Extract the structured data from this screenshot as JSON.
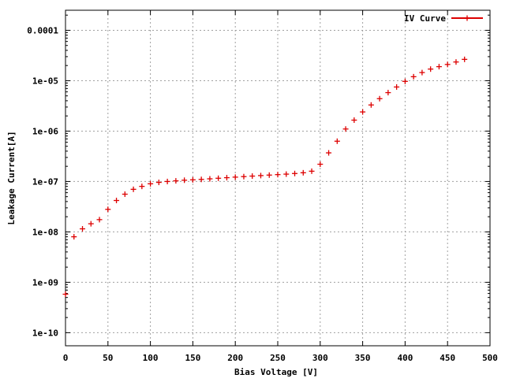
{
  "chart_data": {
    "type": "scatter",
    "title": "",
    "xlabel": "Bias Voltage [V]",
    "ylabel": "Leakage Current[A]",
    "xlim": [
      0,
      500
    ],
    "ylim": [
      5.5e-11,
      0.00025
    ],
    "yscale": "log",
    "grid": true,
    "legend_position": "top-right",
    "x_ticks": [
      {
        "v": 0,
        "label": "0"
      },
      {
        "v": 50,
        "label": "50"
      },
      {
        "v": 100,
        "label": "100"
      },
      {
        "v": 150,
        "label": "150"
      },
      {
        "v": 200,
        "label": "200"
      },
      {
        "v": 250,
        "label": "250"
      },
      {
        "v": 300,
        "label": "300"
      },
      {
        "v": 350,
        "label": "350"
      },
      {
        "v": 400,
        "label": "400"
      },
      {
        "v": 450,
        "label": "450"
      },
      {
        "v": 500,
        "label": "500"
      }
    ],
    "y_ticks": [
      {
        "v": 1e-10,
        "label": "1e-10"
      },
      {
        "v": 1e-09,
        "label": "1e-09"
      },
      {
        "v": 1e-08,
        "label": "1e-08"
      },
      {
        "v": 1e-07,
        "label": "1e-07"
      },
      {
        "v": 1e-06,
        "label": "1e-06"
      },
      {
        "v": 1e-05,
        "label": "1e-05"
      },
      {
        "v": 0.0001,
        "label": "0.0001"
      }
    ],
    "series": [
      {
        "name": "IV Curve",
        "color": "#dd0000",
        "marker": "plus",
        "x": [
          0,
          10,
          20,
          30,
          40,
          50,
          60,
          70,
          80,
          90,
          100,
          110,
          120,
          130,
          140,
          150,
          160,
          170,
          180,
          190,
          200,
          210,
          220,
          230,
          240,
          250,
          260,
          270,
          280,
          290,
          300,
          310,
          320,
          330,
          340,
          350,
          360,
          370,
          380,
          390,
          400,
          410,
          420,
          430,
          440,
          450,
          460,
          470
        ],
        "y": [
          5.8e-10,
          8e-09,
          1.15e-08,
          1.45e-08,
          1.75e-08,
          2.8e-08,
          4.2e-08,
          5.6e-08,
          7e-08,
          8e-08,
          9e-08,
          9.6e-08,
          1e-07,
          1.03e-07,
          1.06e-07,
          1.08e-07,
          1.1e-07,
          1.13e-07,
          1.16e-07,
          1.19e-07,
          1.22e-07,
          1.25e-07,
          1.28e-07,
          1.31e-07,
          1.34e-07,
          1.37e-07,
          1.4e-07,
          1.44e-07,
          1.49e-07,
          1.6e-07,
          2.2e-07,
          3.7e-07,
          6.3e-07,
          1.1e-06,
          1.65e-06,
          2.4e-06,
          3.3e-06,
          4.4e-06,
          5.8e-06,
          7.5e-06,
          9.7e-06,
          1.2e-05,
          1.45e-05,
          1.7e-05,
          1.9e-05,
          2.1e-05,
          2.35e-05,
          2.65e-05
        ]
      }
    ]
  }
}
